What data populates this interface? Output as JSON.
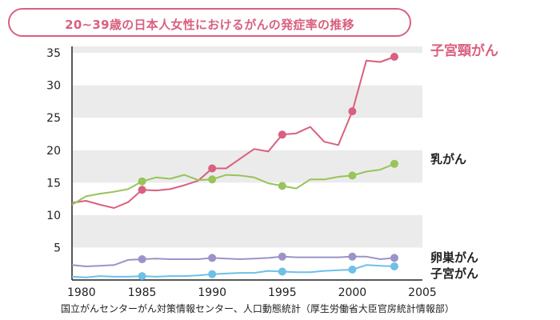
{
  "title": "20~39歳の日本人女性におけるがんの発症率の推移",
  "source": "国立がんセンターがん対策情報センター、人口動態統計（厚生労働省大臣官房統計情報部）",
  "chart_data": {
    "type": "line",
    "title": "20~39歳の日本人女性におけるがんの発症率の推移",
    "xlabel": "",
    "ylabel": "",
    "xlim": [
      1980,
      2005
    ],
    "ylim": [
      0,
      36
    ],
    "xticks": [
      1980,
      1985,
      1990,
      1995,
      2000,
      2005
    ],
    "yticks": [
      5,
      10,
      15,
      20,
      25,
      30,
      35
    ],
    "grid": "horizontal bands",
    "legend": "series labels at right end of lines",
    "series": [
      {
        "name": "子宮頸がん",
        "color": "#d9607f",
        "x": [
          1980,
          1981,
          1982,
          1983,
          1984,
          1985,
          1986,
          1987,
          1988,
          1989,
          1990,
          1991,
          1992,
          1993,
          1994,
          1995,
          1996,
          1997,
          1998,
          1999,
          2000,
          2001,
          2002,
          2003
        ],
        "values": [
          11.9,
          12.2,
          11.6,
          11.1,
          12.0,
          13.9,
          13.8,
          14.0,
          14.6,
          15.3,
          17.2,
          17.2,
          18.7,
          20.2,
          19.8,
          22.4,
          22.6,
          23.6,
          21.3,
          20.8,
          26.0,
          33.8,
          33.6,
          34.4
        ],
        "markers": [
          1985,
          1990,
          1995,
          2000,
          2003
        ]
      },
      {
        "name": "乳がん",
        "color": "#98c45a",
        "x": [
          1980,
          1981,
          1982,
          1983,
          1984,
          1985,
          1986,
          1987,
          1988,
          1989,
          1990,
          1991,
          1992,
          1993,
          1994,
          1995,
          1996,
          1997,
          1998,
          1999,
          2000,
          2001,
          2002,
          2003
        ],
        "values": [
          11.6,
          12.9,
          13.3,
          13.6,
          14.0,
          15.2,
          15.8,
          15.6,
          16.2,
          15.4,
          15.5,
          16.2,
          16.1,
          15.8,
          14.9,
          14.5,
          14.1,
          15.5,
          15.5,
          15.9,
          16.1,
          16.7,
          17.0,
          17.9
        ],
        "markers": [
          1985,
          1990,
          1995,
          2000,
          2003
        ]
      },
      {
        "name": "卵巣がん",
        "color": "#9b93c8",
        "x": [
          1980,
          1981,
          1982,
          1983,
          1984,
          1985,
          1986,
          1987,
          1988,
          1989,
          1990,
          1991,
          1992,
          1993,
          1994,
          1995,
          1996,
          1997,
          1998,
          1999,
          2000,
          2001,
          2002,
          2003
        ],
        "values": [
          2.3,
          2.1,
          2.2,
          2.3,
          3.1,
          3.2,
          3.3,
          3.2,
          3.2,
          3.2,
          3.4,
          3.3,
          3.2,
          3.3,
          3.4,
          3.6,
          3.5,
          3.5,
          3.5,
          3.5,
          3.6,
          3.6,
          3.2,
          3.4
        ],
        "markers": [
          1985,
          1990,
          1995,
          2000,
          2003
        ]
      },
      {
        "name": "子宮がん",
        "color": "#6ec0e6",
        "x": [
          1980,
          1981,
          1982,
          1983,
          1984,
          1985,
          1986,
          1987,
          1988,
          1989,
          1990,
          1991,
          1992,
          1993,
          1994,
          1995,
          1996,
          1997,
          1998,
          1999,
          2000,
          2001,
          2002,
          2003
        ],
        "values": [
          0.5,
          0.4,
          0.6,
          0.5,
          0.5,
          0.6,
          0.5,
          0.6,
          0.6,
          0.7,
          0.9,
          1.0,
          1.1,
          1.1,
          1.4,
          1.3,
          1.2,
          1.2,
          1.4,
          1.5,
          1.6,
          2.3,
          2.2,
          2.1
        ],
        "markers": [
          1985,
          1990,
          1995,
          2000,
          2003
        ]
      }
    ]
  }
}
